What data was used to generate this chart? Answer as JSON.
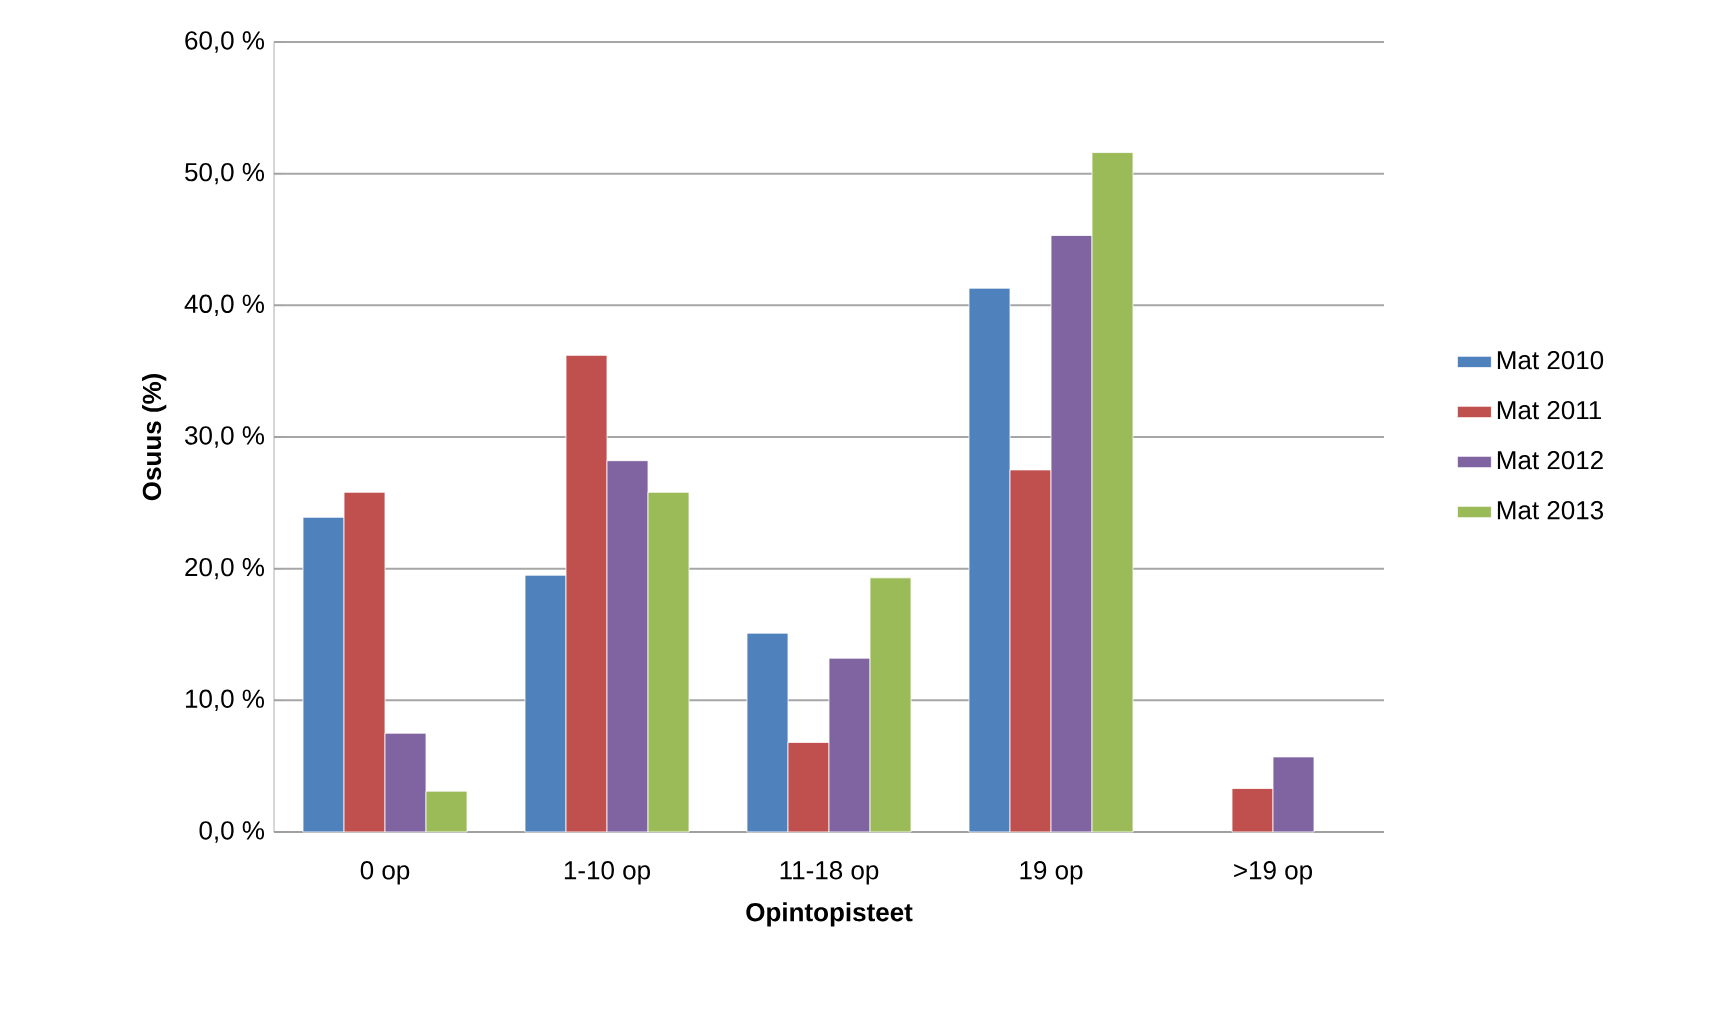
{
  "chart_data": {
    "type": "bar",
    "xlabel": "Opintopisteet",
    "ylabel": "Osuus (%)",
    "categories": [
      "0 op",
      "1-10 op",
      "11-18 op",
      "19 op",
      ">19 op"
    ],
    "series": [
      {
        "name": "Mat 2010",
        "color": "#4f81bd",
        "values": [
          23.9,
          19.5,
          15.1,
          41.3,
          null
        ]
      },
      {
        "name": "Mat 2011",
        "color": "#c0504d",
        "values": [
          25.8,
          36.2,
          6.8,
          27.5,
          3.3
        ]
      },
      {
        "name": "Mat 2012",
        "color": "#8064a2",
        "values": [
          7.5,
          28.2,
          13.2,
          45.3,
          5.7
        ]
      },
      {
        "name": "Mat 2013",
        "color": "#9bbb59",
        "values": [
          3.1,
          25.8,
          19.3,
          51.6,
          null
        ]
      }
    ],
    "ylim": [
      0,
      60
    ],
    "yticks": [
      {
        "value": 0,
        "label": "0,0 %"
      },
      {
        "value": 10,
        "label": "10,0 %"
      },
      {
        "value": 20,
        "label": "20,0 %"
      },
      {
        "value": 30,
        "label": "30,0 %"
      },
      {
        "value": 40,
        "label": "40,0 %"
      },
      {
        "value": 50,
        "label": "50,0 %"
      },
      {
        "value": 60,
        "label": "60,0 %"
      }
    ],
    "grid": "y",
    "legend": "right"
  }
}
